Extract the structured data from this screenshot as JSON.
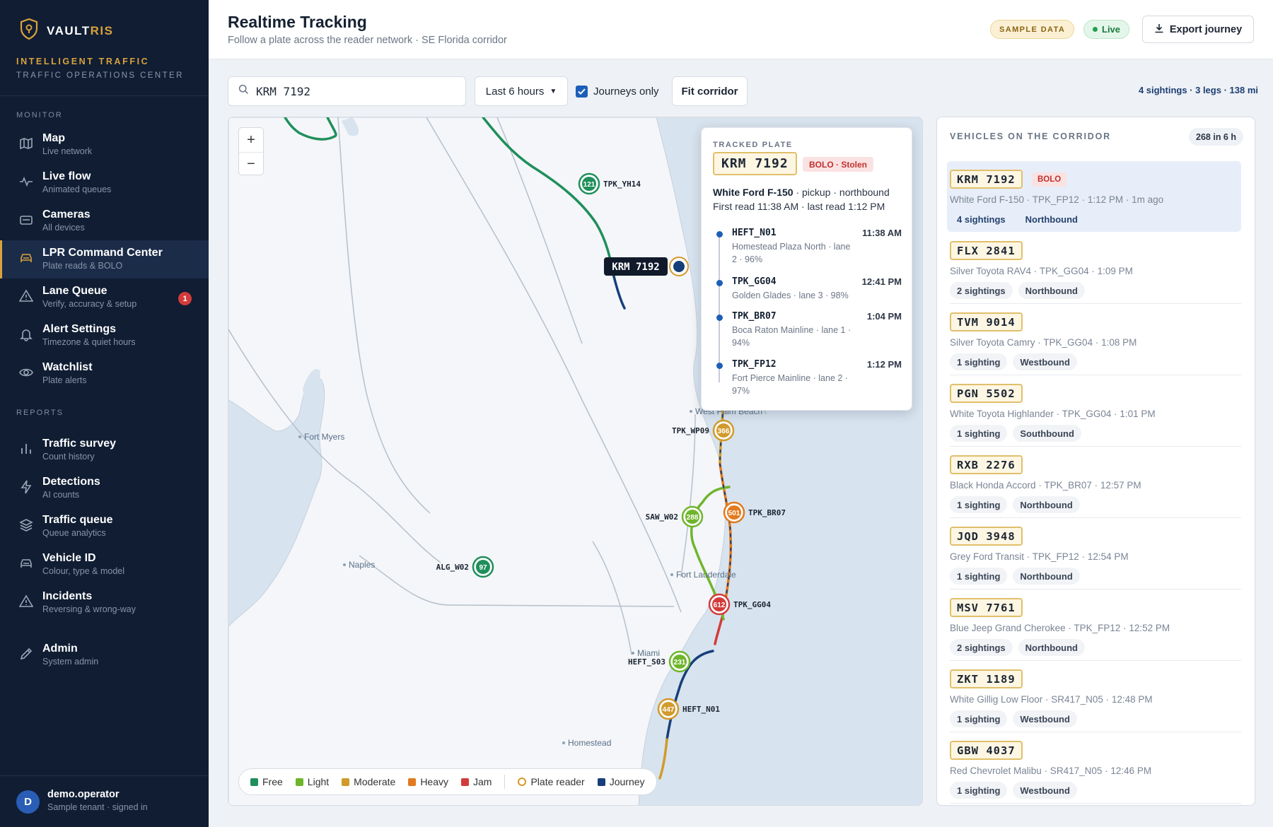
{
  "app": {
    "brand_main": "VAULT",
    "brand_accent": "RIS",
    "org_line1": "INTELLIGENT TRAFFIC",
    "org_line2": "TRAFFIC OPERATIONS CENTER"
  },
  "sidebar": {
    "section_monitor": "MONITOR",
    "section_reports": "REPORTS",
    "items": [
      {
        "id": "map",
        "label": "Map",
        "sub": "Live network",
        "icon": "map-icon"
      },
      {
        "id": "live-flow",
        "label": "Live flow",
        "sub": "Animated queues",
        "icon": "pulse-icon"
      },
      {
        "id": "cameras",
        "label": "Cameras",
        "sub": "All devices",
        "icon": "camera-icon"
      },
      {
        "id": "lpr",
        "label": "LPR Command Center",
        "sub": "Plate reads & BOLO",
        "icon": "car-icon",
        "active": true
      },
      {
        "id": "lane-queue",
        "label": "Lane Queue",
        "sub": "Verify, accuracy & setup",
        "icon": "warning-icon",
        "badge": "1"
      },
      {
        "id": "alert-settings",
        "label": "Alert Settings",
        "sub": "Timezone & quiet hours",
        "icon": "bell-icon"
      },
      {
        "id": "watchlist",
        "label": "Watchlist",
        "sub": "Plate alerts",
        "icon": "eye-icon"
      },
      {
        "id": "traffic-survey",
        "label": "Traffic survey",
        "sub": "Count history",
        "icon": "bar-chart-icon"
      },
      {
        "id": "detections",
        "label": "Detections",
        "sub": "AI counts",
        "icon": "bolt-icon"
      },
      {
        "id": "traffic-queue",
        "label": "Traffic queue",
        "sub": "Queue analytics",
        "icon": "layers-icon"
      },
      {
        "id": "vehicle-id",
        "label": "Vehicle ID",
        "sub": "Colour, type & model",
        "icon": "car-icon"
      },
      {
        "id": "incidents",
        "label": "Incidents",
        "sub": "Reversing & wrong-way",
        "icon": "warning-icon"
      },
      {
        "id": "admin",
        "label": "Admin",
        "sub": "System admin",
        "icon": "pencil-icon"
      }
    ],
    "user": {
      "initial": "D",
      "name": "demo.operator",
      "sub": "Sample tenant · signed in"
    }
  },
  "header": {
    "title": "Realtime Tracking",
    "subtitle": "Follow a plate across the reader network · SE Florida corridor",
    "sample_badge": "SAMPLE DATA",
    "live_badge": "Live",
    "export_label": "Export journey"
  },
  "toolbar": {
    "search_value": "KRM 7192",
    "time_range": "Last 6 hours",
    "journeys_only_label": "Journeys only",
    "journeys_only_checked": true,
    "fit_label": "Fit corridor",
    "summary": "4 sightings · 3 legs · 138 mi"
  },
  "map": {
    "zoom_in": "+",
    "zoom_out": "−",
    "places": [
      "Fort Myers",
      "West Palm Beach",
      "Naples",
      "Fort Lauderdale",
      "Miami",
      "Homestead"
    ],
    "readers": [
      {
        "id": "TPK_YH14",
        "count": "121",
        "level": "free"
      },
      {
        "id": "TPK_WP09",
        "count": "366",
        "level": "moderate"
      },
      {
        "id": "TPK_BR07",
        "count": "501",
        "level": "heavy"
      },
      {
        "id": "SAW_W02",
        "count": "288",
        "level": "light"
      },
      {
        "id": "ALG_W02",
        "count": "97",
        "level": "free"
      },
      {
        "id": "TPK_GG04",
        "count": "612",
        "level": "jam"
      },
      {
        "id": "HEFT_S03",
        "count": "231",
        "level": "light"
      },
      {
        "id": "HEFT_N01",
        "count": "447",
        "level": "moderate"
      }
    ],
    "plate_marker": "KRM 7192",
    "legend": [
      {
        "label": "Free",
        "color": "#1f8f5b"
      },
      {
        "label": "Light",
        "color": "#6fb52c"
      },
      {
        "label": "Moderate",
        "color": "#d19a2c"
      },
      {
        "label": "Heavy",
        "color": "#e27a1e"
      },
      {
        "label": "Jam",
        "color": "#d33b3b"
      }
    ],
    "legend_reader": "Plate reader",
    "legend_journey": "Journey",
    "colors": {
      "free": "#1f8f5b",
      "light": "#6fb52c",
      "moderate": "#d19a2c",
      "heavy": "#e27a1e",
      "jam": "#d33b3b",
      "journey": "#163f7a"
    }
  },
  "tracked": {
    "label": "TRACKED PLATE",
    "plate": "KRM 7192",
    "status": "BOLO · Stolen",
    "vehicle": "White Ford F-150",
    "vehicle_meta": " · pickup · northbound",
    "reads": "First read 11:38 AM · last read 1:12 PM",
    "timeline": [
      {
        "reader": "HEFT_N01",
        "time": "11:38 AM",
        "desc": "Homestead Plaza North · lane 2 · 96%"
      },
      {
        "reader": "TPK_GG04",
        "time": "12:41 PM",
        "desc": "Golden Glades · lane 3 · 98%"
      },
      {
        "reader": "TPK_BR07",
        "time": "1:04 PM",
        "desc": "Boca Raton Mainline · lane 1 · 94%"
      },
      {
        "reader": "TPK_FP12",
        "time": "1:12 PM",
        "desc": "Fort Pierce Mainline · lane 2 · 97%"
      }
    ]
  },
  "vehicles": {
    "title": "VEHICLES ON THE CORRIDOR",
    "count": "268 in 6 h",
    "items": [
      {
        "plate": "KRM 7192",
        "bolo": "BOLO",
        "info": "White Ford F-150 · TPK_FP12 · 1:12 PM · 1m ago",
        "sightings": "4 sightings",
        "direction": "Northbound",
        "selected": true
      },
      {
        "plate": "FLX 2841",
        "info": "Silver Toyota RAV4 · TPK_GG04 · 1:09 PM",
        "sightings": "2 sightings",
        "direction": "Northbound"
      },
      {
        "plate": "TVM 9014",
        "info": "Silver Toyota Camry · TPK_GG04 · 1:08 PM",
        "sightings": "1 sighting",
        "direction": "Westbound"
      },
      {
        "plate": "PGN 5502",
        "info": "White Toyota Highlander · TPK_GG04 · 1:01 PM",
        "sightings": "1 sighting",
        "direction": "Southbound"
      },
      {
        "plate": "RXB 2276",
        "info": "Black Honda Accord · TPK_BR07 · 12:57 PM",
        "sightings": "1 sighting",
        "direction": "Northbound"
      },
      {
        "plate": "JQD 3948",
        "info": "Grey Ford Transit · TPK_FP12 · 12:54 PM",
        "sightings": "1 sighting",
        "direction": "Northbound"
      },
      {
        "plate": "MSV 7761",
        "info": "Blue Jeep Grand Cherokee · TPK_FP12 · 12:52 PM",
        "sightings": "2 sightings",
        "direction": "Northbound"
      },
      {
        "plate": "ZKT 1189",
        "info": "White Gillig Low Floor · SR417_N05 · 12:48 PM",
        "sightings": "1 sighting",
        "direction": "Westbound"
      },
      {
        "plate": "GBW 4037",
        "info": "Red Chevrolet Malibu · SR417_N05 · 12:46 PM",
        "sightings": "1 sighting",
        "direction": "Westbound"
      }
    ]
  }
}
